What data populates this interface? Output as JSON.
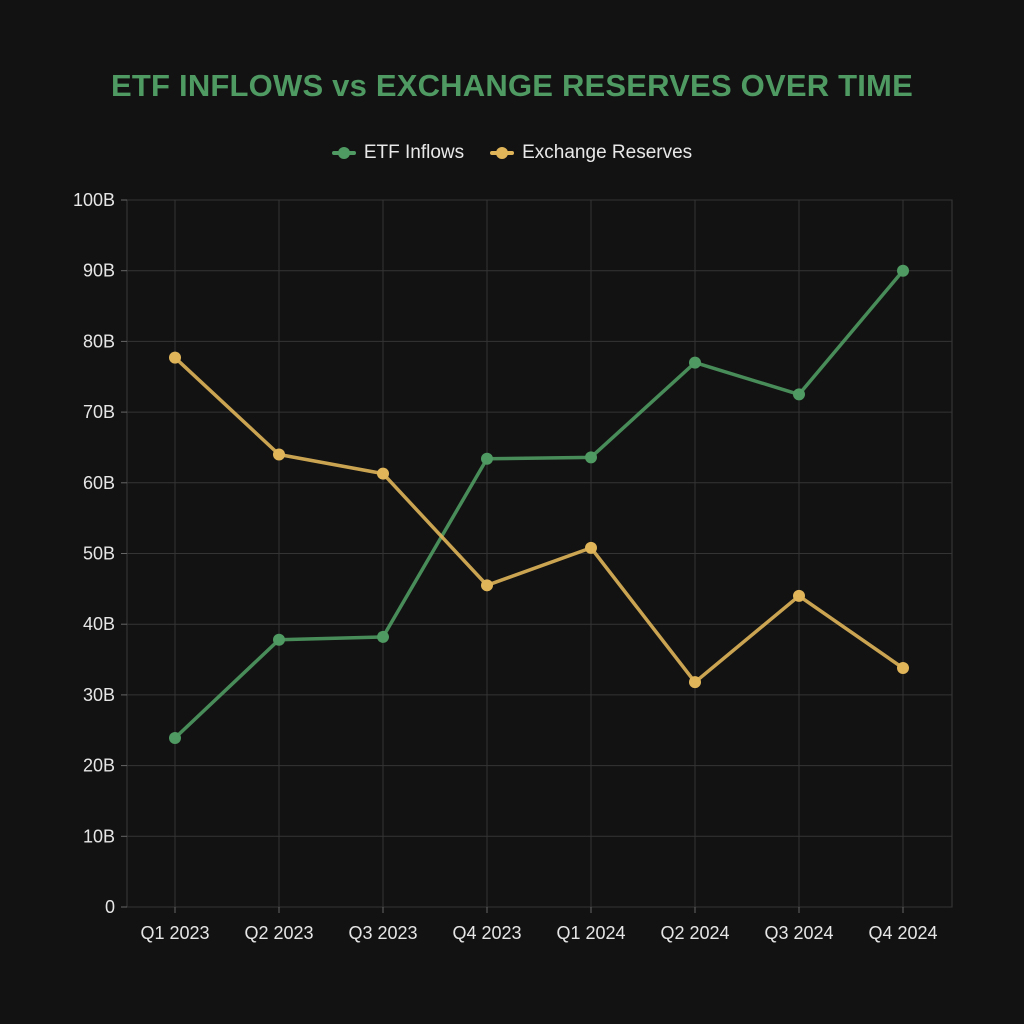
{
  "chart_data": {
    "type": "line",
    "title": "ETF INFLOWS vs EXCHANGE RESERVES OVER TIME",
    "xlabel": "",
    "ylabel": "",
    "categories": [
      "Q1 2023",
      "Q2 2023",
      "Q3 2023",
      "Q4 2023",
      "Q1 2024",
      "Q2 2024",
      "Q3 2024",
      "Q4 2024"
    ],
    "ylim": [
      0,
      100
    ],
    "yticks": [
      0,
      10,
      20,
      30,
      40,
      50,
      60,
      70,
      80,
      90,
      100
    ],
    "ytick_labels": [
      "0",
      "10B",
      "20B",
      "30B",
      "40B",
      "50B",
      "60B",
      "70B",
      "80B",
      "90B",
      "100B"
    ],
    "grid": true,
    "legend_position": "top",
    "series": [
      {
        "name": "ETF Inflows",
        "color": "#4f9a62",
        "values": [
          23.9,
          37.8,
          38.2,
          63.4,
          63.6,
          77.0,
          72.5,
          90.0
        ]
      },
      {
        "name": "Exchange Reserves",
        "color": "#e0b55a",
        "values": [
          77.7,
          64.0,
          61.3,
          45.5,
          50.8,
          31.8,
          44.0,
          33.8
        ]
      }
    ]
  }
}
